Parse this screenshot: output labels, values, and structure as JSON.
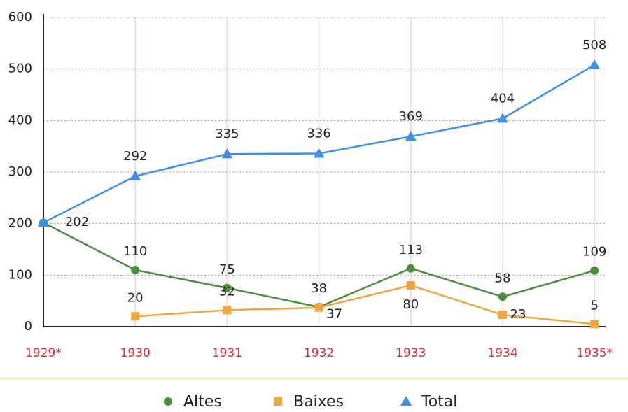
{
  "chart_data": {
    "type": "line",
    "categories": [
      "1929*",
      "1930",
      "1931",
      "1932",
      "1933",
      "1934",
      "1935*"
    ],
    "series": [
      {
        "name": "Altes",
        "color": "#4a8f3a",
        "marker": "circle",
        "values": [
          202,
          110,
          75,
          38,
          113,
          58,
          109
        ],
        "value_labels": [
          null,
          "110",
          "75",
          "38",
          "113",
          "58",
          "109"
        ]
      },
      {
        "name": "Baixes",
        "color": "#f0a640",
        "marker": "square",
        "values": [
          null,
          20,
          32,
          37,
          80,
          23,
          5
        ]
      },
      {
        "name": "Total",
        "color": "#3d8fe8",
        "marker": "triangle",
        "values": [
          202,
          292,
          335,
          336,
          369,
          404,
          508
        ]
      }
    ],
    "ylim": [
      0,
      600
    ],
    "yticks": [
      0,
      100,
      200,
      300,
      400,
      500,
      600
    ],
    "grid": true
  }
}
